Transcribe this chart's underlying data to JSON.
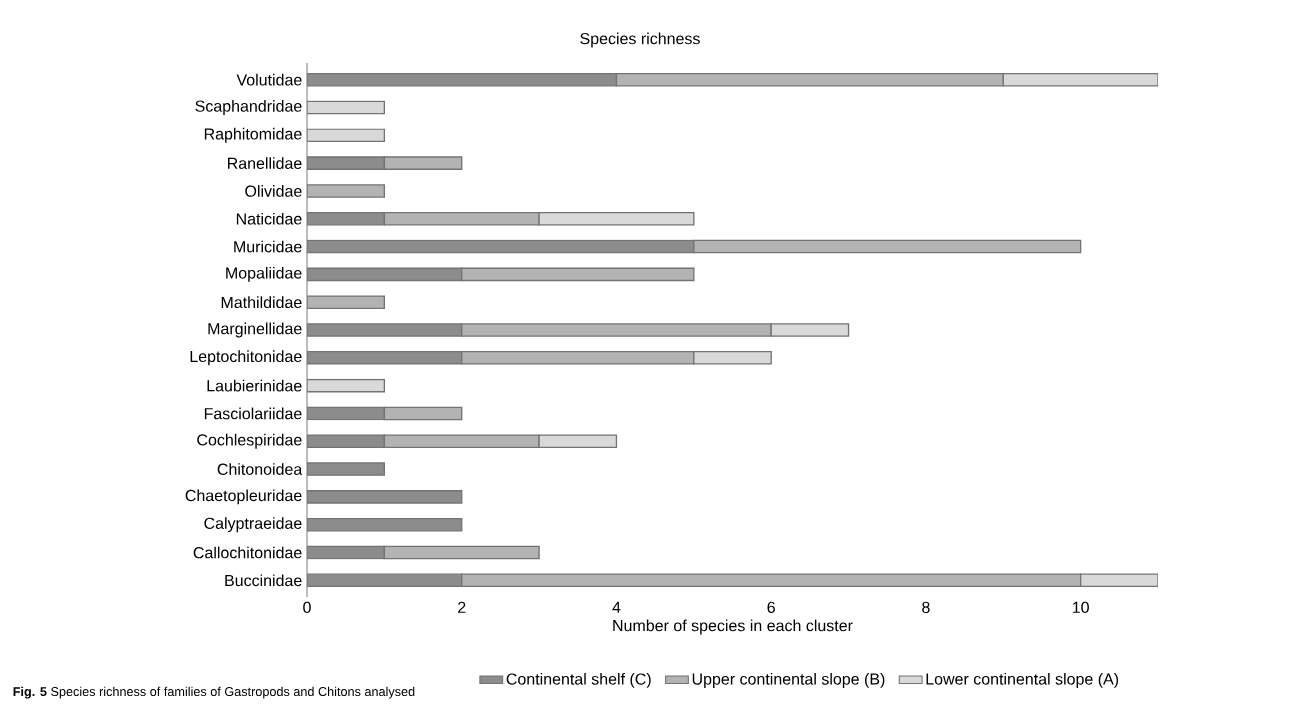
{
  "chart_data": {
    "type": "bar",
    "orientation": "horizontal",
    "stacked": true,
    "title": "Species richness",
    "xlabel": "Number of species in each cluster",
    "categories": [
      "Volutidae",
      "Scaphandridae",
      "Raphitomidae",
      "Ranellidae",
      "Olividae",
      "Naticidae",
      "Muricidae",
      "Mopaliidae",
      "Mathildidae",
      "Marginellidae",
      "Leptochitonidae",
      "Laubierinidae",
      "Fasciolariidae",
      "Cochlespiridae",
      "Chitonoidea",
      "Chaetopleuridae",
      "Calyptraeidae",
      "Callochitonidae",
      "Buccinidae"
    ],
    "series": [
      {
        "name": "Continental shelf (C)",
        "color": "#8c8c8c",
        "values": [
          4,
          null,
          null,
          1,
          null,
          1,
          5,
          2,
          null,
          2,
          2,
          null,
          1,
          1,
          1,
          2,
          2,
          1,
          2
        ]
      },
      {
        "name": "Upper continental slope (B)",
        "color": "#b3b3b3",
        "values": [
          5,
          null,
          null,
          1,
          1,
          2,
          5,
          3,
          1,
          4,
          3,
          null,
          1,
          2,
          null,
          null,
          null,
          2,
          8
        ]
      },
      {
        "name": "Lower continental slope (A)",
        "color": "#d9d9d9",
        "values": [
          2,
          1,
          1,
          null,
          null,
          2,
          null,
          null,
          null,
          1,
          1,
          1,
          null,
          1,
          null,
          null,
          null,
          null,
          1
        ]
      }
    ],
    "xlim": [
      0,
      11
    ],
    "xticks": [
      0,
      2,
      4,
      6,
      8,
      10
    ],
    "grid": false,
    "legend": "bottom",
    "annotations": [
      "**Fig. 5** Species richness of families of Gastropods and Chitons analysed"
    ]
  }
}
